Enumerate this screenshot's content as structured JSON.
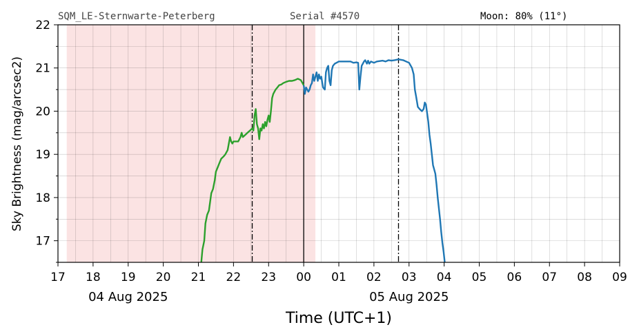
{
  "header": {
    "station": "SQM_LE-Sternwarte-Peterberg",
    "serial": "Serial #4570",
    "moon": "Moon: 80% (11°)"
  },
  "chart_data": {
    "type": "line",
    "xlabel": "Time (UTC+1)",
    "ylabel": "Sky Brightness (mag/arcsec2)",
    "ylim": [
      16.5,
      22
    ],
    "yticks": [
      17,
      18,
      19,
      20,
      21,
      22
    ],
    "xlim": [
      "17:00",
      "09:00"
    ],
    "xticks": [
      "17",
      "18",
      "19",
      "20",
      "21",
      "22",
      "23",
      "00",
      "01",
      "02",
      "03",
      "04",
      "05",
      "06",
      "07",
      "08",
      "09"
    ],
    "date_labels": [
      {
        "text": "04 Aug 2025",
        "at": "19:00"
      },
      {
        "text": "05 Aug 2025",
        "at": "03:00"
      }
    ],
    "grid": true,
    "moon_up_shading": {
      "from": "17:15",
      "to": "00:20",
      "color": "#fbe3e3"
    },
    "vertical_lines": [
      {
        "at": "22:32",
        "style": "dashdot"
      },
      {
        "at": "00:00",
        "style": "solid"
      },
      {
        "at": "02:42",
        "style": "dashdot"
      }
    ],
    "series": [
      {
        "color": "#2ca02c",
        "points": [
          [
            "21:05",
            16.5
          ],
          [
            "21:07",
            16.8
          ],
          [
            "21:10",
            17.0
          ],
          [
            "21:12",
            17.4
          ],
          [
            "21:15",
            17.6
          ],
          [
            "21:18",
            17.7
          ],
          [
            "21:22",
            18.1
          ],
          [
            "21:25",
            18.2
          ],
          [
            "21:28",
            18.4
          ],
          [
            "21:30",
            18.6
          ],
          [
            "21:33",
            18.7
          ],
          [
            "21:36",
            18.8
          ],
          [
            "21:39",
            18.9
          ],
          [
            "21:43",
            18.95
          ],
          [
            "21:46",
            19.0
          ],
          [
            "21:50",
            19.1
          ],
          [
            "21:52",
            19.25
          ],
          [
            "21:54",
            19.4
          ],
          [
            "21:56",
            19.3
          ],
          [
            "21:58",
            19.25
          ],
          [
            "22:00",
            19.3
          ],
          [
            "22:04",
            19.3
          ],
          [
            "22:08",
            19.3
          ],
          [
            "22:10",
            19.35
          ],
          [
            "22:12",
            19.4
          ],
          [
            "22:14",
            19.5
          ],
          [
            "22:16",
            19.4
          ],
          [
            "22:20",
            19.45
          ],
          [
            "22:24",
            19.5
          ],
          [
            "22:28",
            19.55
          ],
          [
            "22:32",
            19.6
          ],
          [
            "22:34",
            19.55
          ],
          [
            "22:36",
            19.9
          ],
          [
            "22:38",
            20.05
          ],
          [
            "22:40",
            19.7
          ],
          [
            "22:42",
            19.6
          ],
          [
            "22:44",
            19.35
          ],
          [
            "22:46",
            19.6
          ],
          [
            "22:48",
            19.55
          ],
          [
            "22:50",
            19.7
          ],
          [
            "22:52",
            19.6
          ],
          [
            "22:54",
            19.75
          ],
          [
            "22:56",
            19.65
          ],
          [
            "22:58",
            19.8
          ],
          [
            "23:00",
            19.9
          ],
          [
            "23:02",
            19.75
          ],
          [
            "23:04",
            20.0
          ],
          [
            "23:06",
            20.3
          ],
          [
            "23:08",
            20.4
          ],
          [
            "23:10",
            20.45
          ],
          [
            "23:12",
            20.5
          ],
          [
            "23:15",
            20.55
          ],
          [
            "23:18",
            20.6
          ],
          [
            "23:22",
            20.62
          ],
          [
            "23:25",
            20.65
          ],
          [
            "23:30",
            20.68
          ],
          [
            "23:35",
            20.7
          ],
          [
            "23:40",
            20.7
          ],
          [
            "23:45",
            20.72
          ],
          [
            "23:50",
            20.75
          ],
          [
            "23:55",
            20.72
          ],
          [
            "23:58",
            20.65
          ],
          [
            "00:00",
            20.6
          ]
        ]
      },
      {
        "color": "#1f77b4",
        "points": [
          [
            "00:00",
            20.6
          ],
          [
            "00:02",
            20.4
          ],
          [
            "00:04",
            20.55
          ],
          [
            "00:06",
            20.5
          ],
          [
            "00:08",
            20.45
          ],
          [
            "00:10",
            20.5
          ],
          [
            "00:12",
            20.6
          ],
          [
            "00:14",
            20.65
          ],
          [
            "00:16",
            20.85
          ],
          [
            "00:18",
            20.7
          ],
          [
            "00:20",
            20.8
          ],
          [
            "00:22",
            20.9
          ],
          [
            "00:24",
            20.7
          ],
          [
            "00:26",
            20.85
          ],
          [
            "00:28",
            20.75
          ],
          [
            "00:30",
            20.8
          ],
          [
            "00:33",
            20.55
          ],
          [
            "00:36",
            20.5
          ],
          [
            "00:38",
            20.9
          ],
          [
            "00:40",
            21.0
          ],
          [
            "00:42",
            21.05
          ],
          [
            "00:44",
            20.7
          ],
          [
            "00:46",
            20.6
          ],
          [
            "00:48",
            20.95
          ],
          [
            "00:50",
            21.05
          ],
          [
            "00:53",
            21.1
          ],
          [
            "00:56",
            21.12
          ],
          [
            "01:00",
            21.15
          ],
          [
            "01:05",
            21.15
          ],
          [
            "01:10",
            21.15
          ],
          [
            "01:15",
            21.15
          ],
          [
            "01:20",
            21.15
          ],
          [
            "01:25",
            21.12
          ],
          [
            "01:30",
            21.13
          ],
          [
            "01:33",
            21.12
          ],
          [
            "01:35",
            20.5
          ],
          [
            "01:37",
            20.8
          ],
          [
            "01:39",
            21.05
          ],
          [
            "01:41",
            21.1
          ],
          [
            "01:43",
            21.15
          ],
          [
            "01:45",
            21.18
          ],
          [
            "01:48",
            21.1
          ],
          [
            "01:50",
            21.17
          ],
          [
            "01:52",
            21.1
          ],
          [
            "01:55",
            21.15
          ],
          [
            "02:00",
            21.12
          ],
          [
            "02:05",
            21.15
          ],
          [
            "02:10",
            21.16
          ],
          [
            "02:15",
            21.17
          ],
          [
            "02:20",
            21.15
          ],
          [
            "02:25",
            21.18
          ],
          [
            "02:30",
            21.17
          ],
          [
            "02:35",
            21.18
          ],
          [
            "02:42",
            21.2
          ],
          [
            "02:50",
            21.18
          ],
          [
            "02:55",
            21.15
          ],
          [
            "03:00",
            21.12
          ],
          [
            "03:05",
            21.0
          ],
          [
            "03:08",
            20.85
          ],
          [
            "03:10",
            20.5
          ],
          [
            "03:12",
            20.35
          ],
          [
            "03:15",
            20.1
          ],
          [
            "03:18",
            20.05
          ],
          [
            "03:22",
            20.0
          ],
          [
            "03:25",
            20.05
          ],
          [
            "03:27",
            20.2
          ],
          [
            "03:29",
            20.15
          ],
          [
            "03:31",
            19.95
          ],
          [
            "03:33",
            19.75
          ],
          [
            "03:35",
            19.45
          ],
          [
            "03:37",
            19.25
          ],
          [
            "03:39",
            19.0
          ],
          [
            "03:41",
            18.75
          ],
          [
            "03:43",
            18.65
          ],
          [
            "03:45",
            18.55
          ],
          [
            "03:47",
            18.3
          ],
          [
            "03:49",
            18.0
          ],
          [
            "03:51",
            17.75
          ],
          [
            "03:53",
            17.5
          ],
          [
            "03:55",
            17.2
          ],
          [
            "03:57",
            16.95
          ],
          [
            "03:59",
            16.75
          ],
          [
            "04:01",
            16.5
          ]
        ]
      }
    ]
  }
}
